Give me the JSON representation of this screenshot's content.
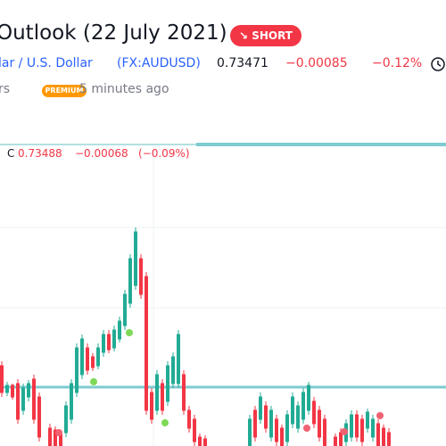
{
  "header": {
    "title": "Outlook (22 July 2021)",
    "badge": "SHORT",
    "symbol_name": "lar / U.S. Dollar",
    "symbol_code": "(FX:AUDUSD)",
    "price": "0.73471",
    "change": "−0.00085",
    "change_percent": "−0.12%",
    "author": "rs",
    "author_badge": "PREMIUM",
    "time": "5 minutes ago"
  },
  "chart_legend": {
    "label": "C",
    "close": "0.73488",
    "change": "−0.00068",
    "change_percent": "(−0.09%)"
  }
}
